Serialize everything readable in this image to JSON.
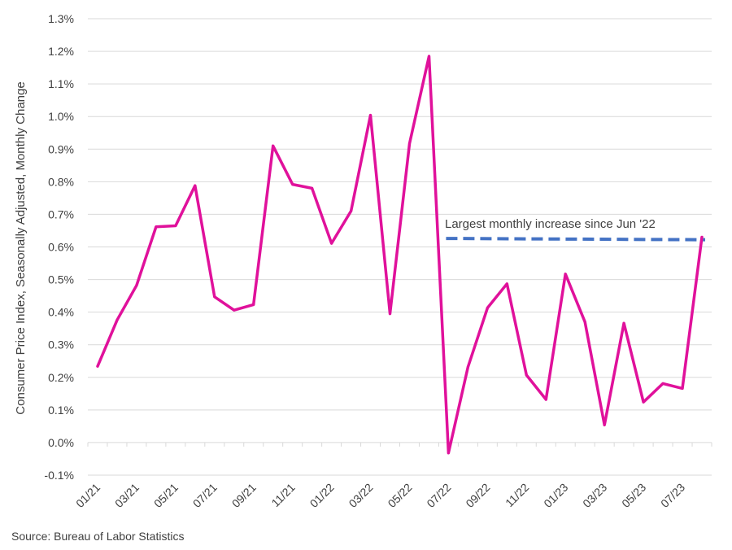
{
  "chart_data": {
    "type": "line",
    "ylabel": "Consumer Price Index, Seasonally Adjusted, Monthly Change",
    "ylim": [
      -0.1,
      1.3
    ],
    "yticks": [
      -0.1,
      0.0,
      0.1,
      0.2,
      0.3,
      0.4,
      0.5,
      0.6,
      0.7,
      0.8,
      0.9,
      1.0,
      1.1,
      1.2,
      1.3
    ],
    "ytick_labels": [
      "-0.1%",
      "0.0%",
      "0.1%",
      "0.2%",
      "0.3%",
      "0.4%",
      "0.5%",
      "0.6%",
      "0.7%",
      "0.8%",
      "0.9%",
      "1.0%",
      "1.1%",
      "1.2%",
      "1.3%"
    ],
    "grid": true,
    "x": [
      "01/21",
      "02/21",
      "03/21",
      "04/21",
      "05/21",
      "06/21",
      "07/21",
      "08/21",
      "09/21",
      "10/21",
      "11/21",
      "12/21",
      "01/22",
      "02/22",
      "03/22",
      "04/22",
      "05/22",
      "06/22",
      "07/22",
      "08/22",
      "09/22",
      "10/22",
      "11/22",
      "12/22",
      "01/23",
      "02/23",
      "03/23",
      "04/23",
      "05/23",
      "06/23",
      "07/23",
      "08/23"
    ],
    "xtick_labels": [
      "01/21",
      "03/21",
      "05/21",
      "07/21",
      "09/21",
      "11/21",
      "01/22",
      "03/22",
      "05/22",
      "07/22",
      "09/22",
      "11/22",
      "01/23",
      "03/23",
      "05/23",
      "07/23"
    ],
    "series": [
      {
        "color": "#E0119B",
        "values": [
          0.234,
          0.376,
          0.482,
          0.662,
          0.665,
          0.788,
          0.447,
          0.406,
          0.423,
          0.91,
          0.792,
          0.78,
          0.611,
          0.71,
          1.004,
          0.395,
          0.917,
          1.185,
          -0.032,
          0.232,
          0.413,
          0.487,
          0.207,
          0.132,
          0.517,
          0.37,
          0.054,
          0.366,
          0.124,
          0.181,
          0.166,
          0.63
        ]
      }
    ],
    "reference_line": {
      "color": "#4472C4",
      "style": "dashed",
      "from_x": "07/22",
      "to_x": "08/23",
      "y_start": 0.626,
      "y_end": 0.622,
      "label": "Largest monthly increase since Jun '22"
    }
  },
  "footer": {
    "source": "Source: Bureau of Labor Statistics"
  }
}
